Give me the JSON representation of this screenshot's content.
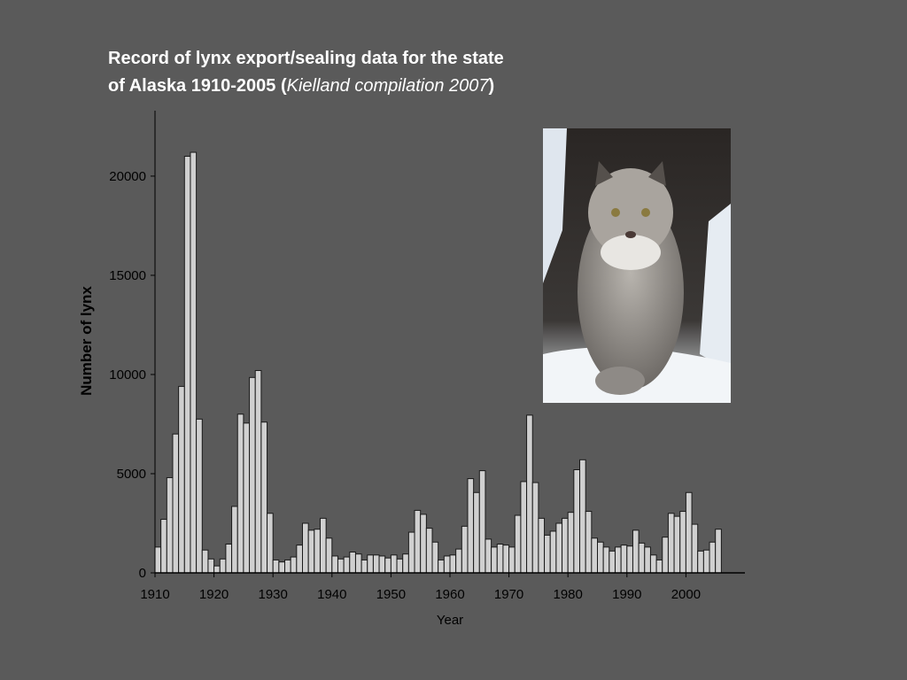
{
  "chart_data": {
    "type": "bar",
    "title": [
      "Record of lynx export/sealing data for the state",
      "of Alaska 1910-2005  (",
      "Kielland compilation 2007",
      ")"
    ],
    "x_label": "Year",
    "y_label": "Number of lynx",
    "color": "#d0d0d0",
    "x": [
      1910,
      1911,
      1912,
      1913,
      1914,
      1915,
      1916,
      1917,
      1918,
      1919,
      1920,
      1921,
      1922,
      1923,
      1924,
      1925,
      1926,
      1927,
      1928,
      1929,
      1930,
      1931,
      1932,
      1933,
      1934,
      1935,
      1936,
      1937,
      1938,
      1939,
      1940,
      1941,
      1942,
      1943,
      1944,
      1945,
      1946,
      1947,
      1948,
      1949,
      1950,
      1951,
      1952,
      1953,
      1954,
      1955,
      1956,
      1957,
      1958,
      1959,
      1960,
      1961,
      1962,
      1963,
      1964,
      1965,
      1966,
      1967,
      1968,
      1969,
      1970,
      1971,
      1972,
      1973,
      1974,
      1975,
      1976,
      1977,
      1978,
      1979,
      1980,
      1981,
      1982,
      1983,
      1984,
      1985,
      1986,
      1987,
      1988,
      1989,
      1990,
      1991,
      1992,
      1993,
      1994,
      1995,
      1996,
      1997,
      1998,
      1999,
      2000,
      2001,
      2002,
      2003,
      2004,
      2005
    ],
    "values": [
      1300,
      2700,
      4800,
      7000,
      9400,
      21000,
      21200,
      7750,
      1150,
      700,
      350,
      700,
      1450,
      3350,
      8000,
      7550,
      9850,
      10200,
      7600,
      3000,
      650,
      550,
      650,
      800,
      1400,
      2500,
      2150,
      2200,
      2750,
      1750,
      850,
      700,
      800,
      1050,
      950,
      650,
      900,
      900,
      850,
      750,
      900,
      700,
      950,
      2050,
      3150,
      2950,
      2250,
      1550,
      650,
      850,
      900,
      1200,
      2350,
      4750,
      4050,
      5150,
      1700,
      1300,
      1450,
      1400,
      1300,
      2900,
      4600,
      7950,
      4550,
      2750,
      1900,
      2100,
      2500,
      2750,
      3050,
      5200,
      5700,
      3100,
      1750,
      1550,
      1300,
      1100,
      1300,
      1400,
      1350,
      2150,
      1500,
      1300,
      900,
      650,
      1800,
      3000,
      2850,
      3100,
      4050,
      2450,
      1100,
      1150,
      1550,
      2200
    ],
    "xlim": [
      1910,
      2010
    ],
    "xticks": [
      1910,
      1920,
      1930,
      1940,
      1950,
      1960,
      1970,
      1980,
      1990,
      2000
    ],
    "ylim": [
      0,
      23300
    ],
    "yticks": [
      0,
      5000,
      10000,
      15000,
      20000
    ]
  }
}
